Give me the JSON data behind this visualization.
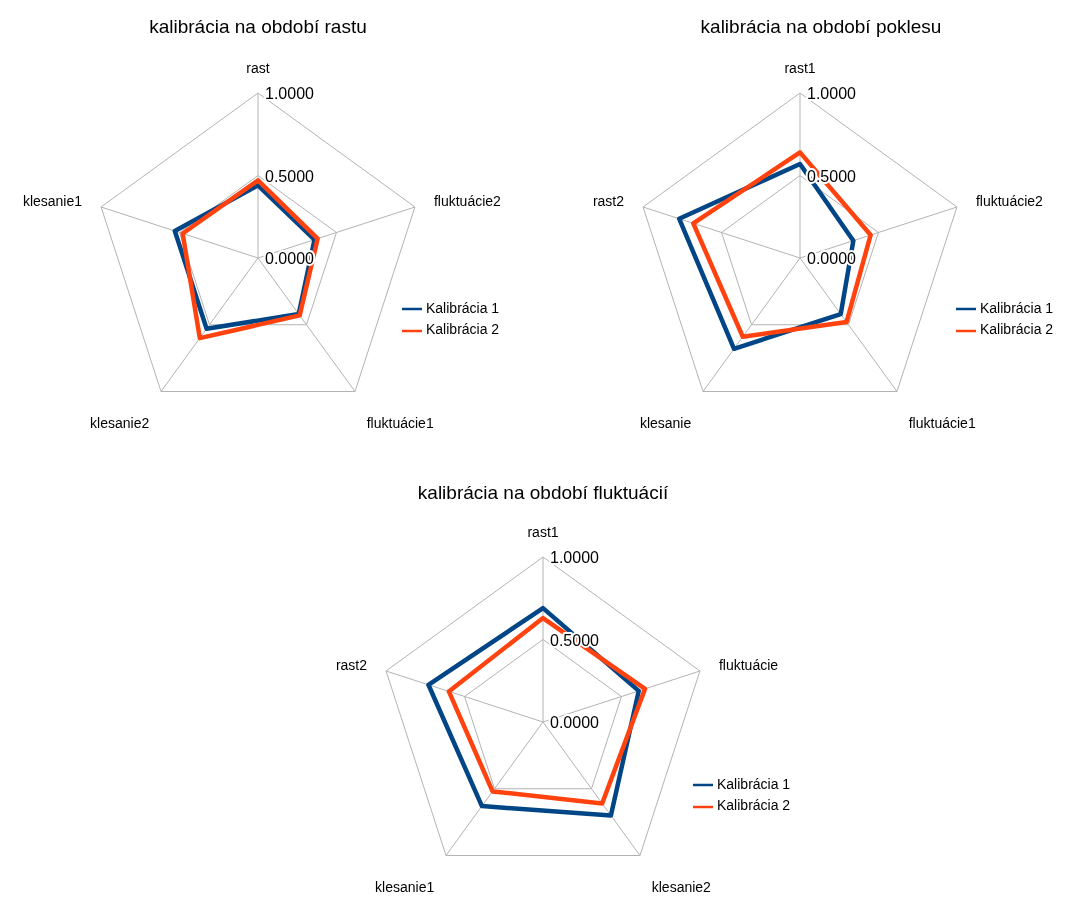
{
  "chart_data": [
    {
      "type": "radar",
      "title": "kalibrácia na období rastu",
      "categories": [
        "rast",
        "fluktuácie2",
        "fluktuácie1",
        "klesanie2",
        "klesanie1"
      ],
      "series": [
        {
          "name": "Kalibrácia 1",
          "color": "#004586",
          "values": [
            0.44,
            0.36,
            0.42,
            0.53,
            0.53
          ]
        },
        {
          "name": "Kalibrácia 2",
          "color": "#ff420e",
          "values": [
            0.47,
            0.38,
            0.43,
            0.6,
            0.48
          ]
        }
      ],
      "ylim": [
        0,
        1
      ],
      "yticks": [
        {
          "value": 0,
          "label": "0.0000"
        },
        {
          "value": 0.5,
          "label": "0.5000"
        },
        {
          "value": 1,
          "label": "1.0000"
        }
      ],
      "grid": true,
      "legend": "right"
    },
    {
      "type": "radar",
      "title": "kalibrácia na období poklesu",
      "categories": [
        "rast1",
        "fluktuácie2",
        "fluktuácie1",
        "klesanie",
        "rast2"
      ],
      "series": [
        {
          "name": "Kalibrácia 1",
          "color": "#004586",
          "values": [
            0.57,
            0.34,
            0.42,
            0.68,
            0.77
          ]
        },
        {
          "name": "Kalibrácia 2",
          "color": "#ff420e",
          "values": [
            0.64,
            0.45,
            0.48,
            0.59,
            0.68
          ]
        }
      ],
      "ylim": [
        0,
        1
      ],
      "yticks": [
        {
          "value": 0,
          "label": "0.0000"
        },
        {
          "value": 0.5,
          "label": "0.5000"
        },
        {
          "value": 1,
          "label": "1.0000"
        }
      ],
      "grid": true,
      "legend": "right"
    },
    {
      "type": "radar",
      "title": "kalibrácia na období fluktuácií",
      "categories": [
        "rast1",
        "fluktuácie",
        "klesanie2",
        "klesanie1",
        "rast2"
      ],
      "series": [
        {
          "name": "Kalibrácia 1",
          "color": "#004586",
          "values": [
            0.69,
            0.61,
            0.7,
            0.63,
            0.73
          ]
        },
        {
          "name": "Kalibrácia 2",
          "color": "#ff420e",
          "values": [
            0.63,
            0.65,
            0.61,
            0.52,
            0.6
          ]
        }
      ],
      "ylim": [
        0,
        1
      ],
      "yticks": [
        {
          "value": 0,
          "label": "0.0000"
        },
        {
          "value": 0.5,
          "label": "0.5000"
        },
        {
          "value": 1,
          "label": "1.0000"
        }
      ],
      "grid": true,
      "legend": "right"
    }
  ]
}
